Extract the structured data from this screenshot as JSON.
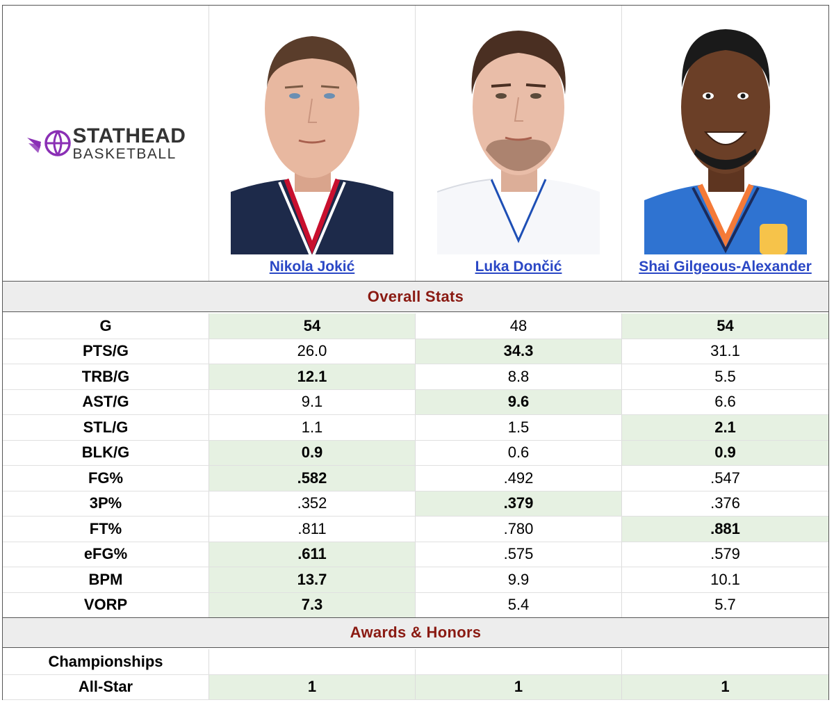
{
  "logo": {
    "top": "STATHEAD",
    "bottom": "BASKETBALL",
    "accent": "#8a2fb5"
  },
  "players": [
    {
      "name": "Nikola Jokić",
      "jersey": "#1d2a4a",
      "trim": "#c8102e",
      "skin": "#e8b8a0",
      "hair": "#5a3d2b"
    },
    {
      "name": "Luka Dončić",
      "jersey": "#f6f7fa",
      "trim": "#1e4fb5",
      "skin": "#e9bda8",
      "hair": "#4a2f22"
    },
    {
      "name": "Shai Gilgeous-Alexander",
      "jersey": "#2f73d1",
      "trim": "#f47a38",
      "skin": "#6b3f27",
      "hair": "#1a1a1a"
    }
  ],
  "sections": {
    "overall": "Overall Stats",
    "awards": "Awards & Honors"
  },
  "stats": [
    {
      "label": "G",
      "values": [
        "54",
        "48",
        "54"
      ],
      "best": [
        true,
        false,
        true
      ]
    },
    {
      "label": "PTS/G",
      "values": [
        "26.0",
        "34.3",
        "31.1"
      ],
      "best": [
        false,
        true,
        false
      ]
    },
    {
      "label": "TRB/G",
      "values": [
        "12.1",
        "8.8",
        "5.5"
      ],
      "best": [
        true,
        false,
        false
      ]
    },
    {
      "label": "AST/G",
      "values": [
        "9.1",
        "9.6",
        "6.6"
      ],
      "best": [
        false,
        true,
        false
      ]
    },
    {
      "label": "STL/G",
      "values": [
        "1.1",
        "1.5",
        "2.1"
      ],
      "best": [
        false,
        false,
        true
      ]
    },
    {
      "label": "BLK/G",
      "values": [
        "0.9",
        "0.6",
        "0.9"
      ],
      "best": [
        true,
        false,
        true
      ]
    },
    {
      "label": "FG%",
      "values": [
        ".582",
        ".492",
        ".547"
      ],
      "best": [
        true,
        false,
        false
      ]
    },
    {
      "label": "3P%",
      "values": [
        ".352",
        ".379",
        ".376"
      ],
      "best": [
        false,
        true,
        false
      ]
    },
    {
      "label": "FT%",
      "values": [
        ".811",
        ".780",
        ".881"
      ],
      "best": [
        false,
        false,
        true
      ]
    },
    {
      "label": "eFG%",
      "values": [
        ".611",
        ".575",
        ".579"
      ],
      "best": [
        true,
        false,
        false
      ]
    },
    {
      "label": "BPM",
      "values": [
        "13.7",
        "9.9",
        "10.1"
      ],
      "best": [
        true,
        false,
        false
      ]
    },
    {
      "label": "VORP",
      "values": [
        "7.3",
        "5.4",
        "5.7"
      ],
      "best": [
        true,
        false,
        false
      ]
    }
  ],
  "awards": [
    {
      "label": "Championships",
      "values": [
        "",
        "",
        ""
      ],
      "best": [
        false,
        false,
        false
      ]
    },
    {
      "label": "All-Star",
      "values": [
        "1",
        "1",
        "1"
      ],
      "best": [
        true,
        true,
        true
      ]
    }
  ]
}
